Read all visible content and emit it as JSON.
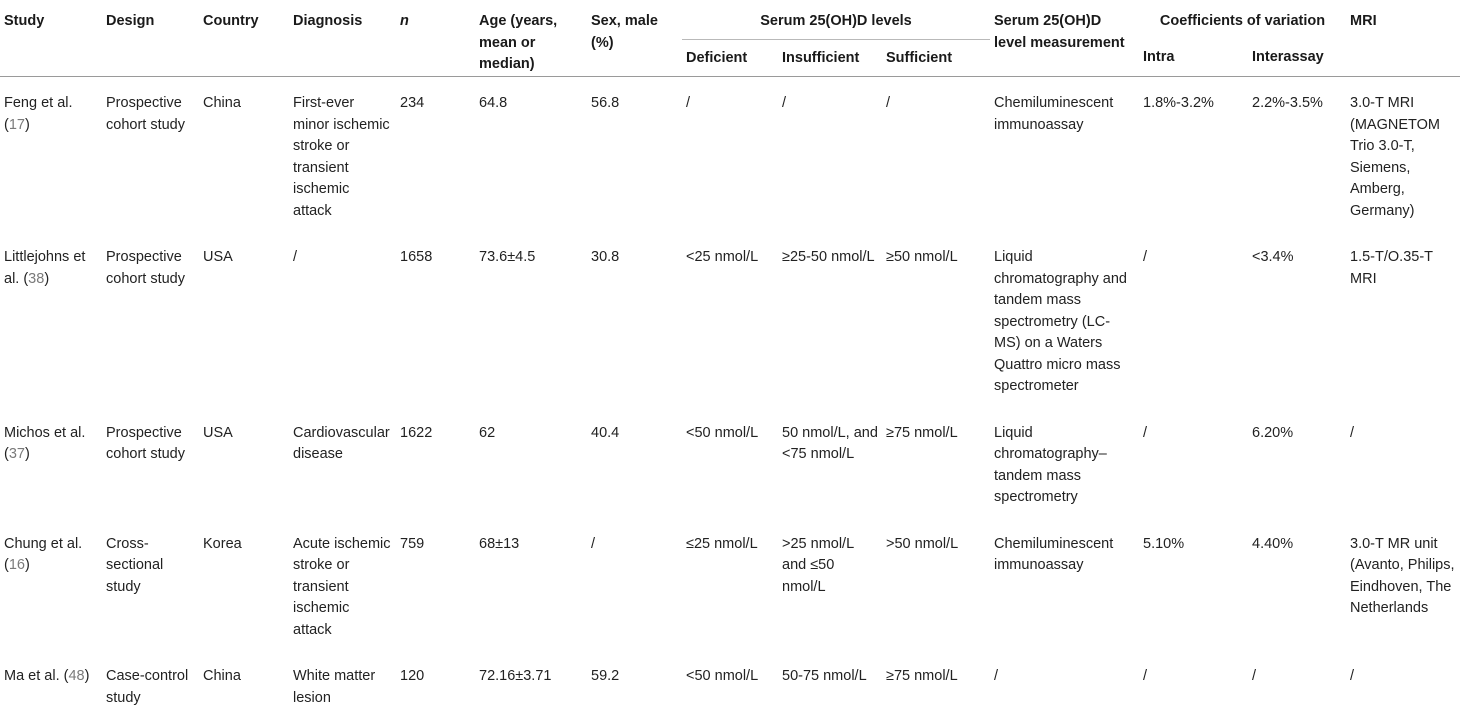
{
  "table": {
    "headers": {
      "study": "Study",
      "design": "Design",
      "country": "Country",
      "diagnosis": "Diagnosis",
      "n": "n",
      "age": "Age (years, mean or median)",
      "sex": "Sex, male (%)",
      "serum_levels": "Serum 25(OH)D levels",
      "deficient": "Deficient",
      "insufficient": "Insufficient",
      "sufficient": "Sufficient",
      "measurement": "Serum 25(OH)D level measurement",
      "cv": "Coefficients of variation",
      "intra": "Intra",
      "interassay": "Interassay",
      "mri": "MRI"
    },
    "rows": [
      {
        "study": "Feng et al. (",
        "ref": "17",
        "study_end": ")",
        "design": "Prospective cohort study",
        "country": "China",
        "diagnosis": "First-ever minor ischemic stroke or transient ischemic attack",
        "n": "234",
        "age": "64.8",
        "sex": "56.8",
        "deficient": "/",
        "insufficient": "/",
        "sufficient": "/",
        "measurement": "Chemiluminescent immunoassay",
        "intra": "1.8%-3.2%",
        "interassay": "2.2%-3.5%",
        "mri": "3.0-T MRI (MAGNETOM Trio 3.0-T, Siemens, Amberg, Germany)"
      },
      {
        "study": "Littlejohns et al. (",
        "ref": "38",
        "study_end": ")",
        "design": "Prospective cohort study",
        "country": "USA",
        "diagnosis": "/",
        "n": "1658",
        "age": "73.6±4.5",
        "sex": "30.8",
        "deficient": "<25 nmol/L",
        "insufficient": "≥25-50 nmol/L",
        "sufficient": "≥50 nmol/L",
        "measurement": "Liquid chromatography and tandem mass spectrometry (LC-MS) on a Waters Quattro micro mass spectrometer",
        "intra": "/",
        "interassay": "<3.4%",
        "mri": "1.5-T/O.35-T MRI"
      },
      {
        "study": "Michos et al. (",
        "ref": "37",
        "study_end": ")",
        "design": "Prospective cohort study",
        "country": "USA",
        "diagnosis": "Cardiovascular disease",
        "n": "1622",
        "age": "62",
        "sex": "40.4",
        "deficient": "<50 nmol/L",
        "insufficient": "50 nmol/L, and <75 nmol/L",
        "sufficient": "≥75 nmol/L",
        "measurement": "Liquid chromatography– tandem mass spectrometry",
        "intra": "/",
        "interassay": "6.20%",
        "mri": "/"
      },
      {
        "study": "Chung et al. (",
        "ref": "16",
        "study_end": ")",
        "design": "Cross-sectional study",
        "country": "Korea",
        "diagnosis": "Acute ischemic stroke or transient ischemic attack",
        "n": "759",
        "age": "68±13",
        "sex": "/",
        "deficient": "≤25 nmol/L",
        "insufficient": ">25 nmol/L and ≤50 nmol/L",
        "sufficient": ">50 nmol/L",
        "measurement": "Chemiluminescent immunoassay",
        "intra": "5.10%",
        "interassay": "4.40%",
        "mri": "3.0-T MR unit (Avanto, Philips, Eindhoven, The Netherlands"
      },
      {
        "study": "Ma et al. (",
        "ref": "48",
        "study_end": ")",
        "design": "Case-control study",
        "country": "China",
        "diagnosis": "White matter lesion",
        "n": "120",
        "age": "72.16±3.71",
        "sex": "59.2",
        "deficient": "<50 nmol/L",
        "insufficient": "50-75 nmol/L",
        "sufficient": "≥75 nmol/L",
        "measurement": "/",
        "intra": "/",
        "interassay": "/",
        "mri": "/"
      }
    ]
  }
}
